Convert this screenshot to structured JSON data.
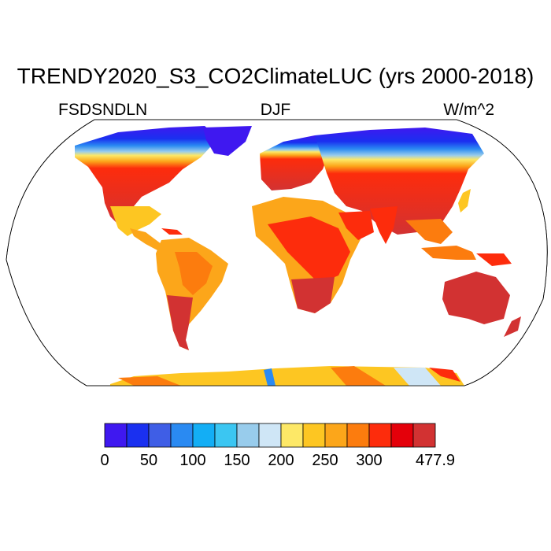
{
  "title": "TRENDY2020_S3_CO2ClimateLUC (yrs 2000-2018)",
  "left_label": "FSDSNDLN",
  "center_label": "DJF",
  "right_label": "W/m^2",
  "colorbar": {
    "colors": [
      "#3f18f0",
      "#1a30f0",
      "#3f5ee6",
      "#2a8af2",
      "#13aef5",
      "#3bc6f2",
      "#98ccec",
      "#cfe6f6",
      "#fde867",
      "#fdc622",
      "#fca61a",
      "#fc7c0e",
      "#fd2c0c",
      "#e4000a",
      "#d23232"
    ],
    "labels": [
      {
        "text": "0",
        "boundary": 0
      },
      {
        "text": "50",
        "boundary": 2
      },
      {
        "text": "100",
        "boundary": 4
      },
      {
        "text": "150",
        "boundary": 6
      },
      {
        "text": "200",
        "boundary": 8
      },
      {
        "text": "250",
        "boundary": 10
      },
      {
        "text": "300",
        "boundary": 12
      },
      {
        "text": "477.9",
        "boundary": 15
      }
    ]
  }
}
